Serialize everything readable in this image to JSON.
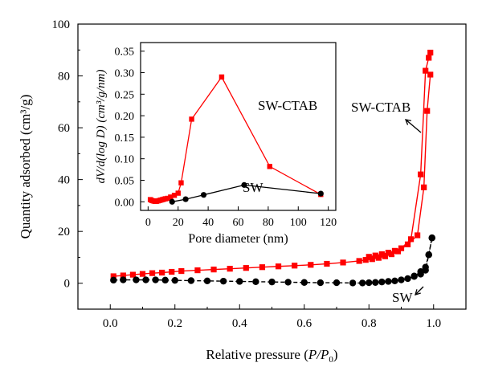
{
  "chart_data": [
    {
      "type": "scatter",
      "role": "main",
      "xlabel": "Relative pressure",
      "xlabel_math": "P/P0",
      "ylabel": "Quantity adsorbed (cm³/g)",
      "xlim": [
        -0.1,
        1.1
      ],
      "ylim": [
        -10,
        100
      ],
      "xticks": [
        "0.0",
        "0.2",
        "0.4",
        "0.6",
        "0.8",
        "1.0"
      ],
      "yticks": [
        "0",
        "20",
        "40",
        "60",
        "80",
        "100"
      ],
      "grid": false,
      "series": [
        {
          "name": "SW-CTAB",
          "color": "#ff0000",
          "marker": "square",
          "adsorption": {
            "x": [
              0.01,
              0.04,
              0.07,
              0.1,
              0.13,
              0.16,
              0.19,
              0.22,
              0.27,
              0.32,
              0.37,
              0.42,
              0.47,
              0.52,
              0.57,
              0.62,
              0.67,
              0.72,
              0.77,
              0.79,
              0.81,
              0.83,
              0.85,
              0.87,
              0.89,
              0.92,
              0.95,
              0.97,
              0.98,
              0.99
            ],
            "y": [
              2.7,
              3.0,
              3.3,
              3.6,
              3.9,
              4.1,
              4.4,
              4.7,
              5.0,
              5.3,
              5.6,
              5.9,
              6.2,
              6.5,
              6.8,
              7.1,
              7.5,
              8.0,
              8.6,
              9.0,
              9.3,
              9.8,
              10.4,
              11.2,
              12.3,
              15.0,
              18.5,
              37.0,
              66.5,
              80.5
            ]
          },
          "desorption": {
            "x": [
              0.99,
              0.985,
              0.975,
              0.96,
              0.93,
              0.9,
              0.88,
              0.86,
              0.84,
              0.82,
              0.8
            ],
            "y": [
              89.0,
              87.0,
              82.0,
              42.0,
              17.0,
              13.5,
              12.5,
              11.8,
              11.2,
              10.7,
              10.2
            ]
          }
        },
        {
          "name": "SW",
          "color": "#000000",
          "marker": "circle",
          "adsorption": {
            "x": [
              0.01,
              0.04,
              0.08,
              0.11,
              0.14,
              0.17,
              0.2,
              0.25,
              0.3,
              0.35,
              0.4,
              0.45,
              0.5,
              0.55,
              0.6,
              0.65,
              0.7,
              0.75,
              0.78,
              0.8,
              0.82,
              0.84,
              0.86,
              0.88,
              0.9,
              0.92,
              0.94,
              0.96,
              0.975,
              0.985,
              0.995
            ],
            "y": [
              1.2,
              1.3,
              1.3,
              1.3,
              1.3,
              1.2,
              1.1,
              1.0,
              0.9,
              0.8,
              0.7,
              0.6,
              0.5,
              0.4,
              0.3,
              0.2,
              0.2,
              0.1,
              0.1,
              0.2,
              0.3,
              0.5,
              0.7,
              0.9,
              1.3,
              1.8,
              2.6,
              4.5,
              6.2,
              11.0,
              17.5
            ]
          },
          "desorption": {
            "x": [
              0.995,
              0.985,
              0.975,
              0.96,
              0.94
            ],
            "y": [
              17.5,
              11.0,
              5.0,
              3.5,
              2.8
            ]
          }
        }
      ],
      "annotations": [
        {
          "text": "SW-CTAB",
          "arrow": true
        },
        {
          "text": "SW",
          "arrow": true
        }
      ]
    },
    {
      "type": "line",
      "role": "inset",
      "xlabel": "Pore diameter (nm)",
      "ylabel": "dV/d(log D) (cm³/g/nm)",
      "xlim": [
        -5,
        125
      ],
      "ylim": [
        -0.02,
        0.37
      ],
      "xticks": [
        "0",
        "20",
        "40",
        "60",
        "80",
        "100",
        "120"
      ],
      "yticks": [
        "0.00",
        "0.05",
        "0.10",
        "0.15",
        "0.20",
        "0.25",
        "0.30",
        "0.35"
      ],
      "grid": false,
      "series": [
        {
          "name": "SW-CTAB",
          "color": "#ff0000",
          "marker": "square",
          "x": [
            1.5,
            2.5,
            3.5,
            4.5,
            5.5,
            6.5,
            7.5,
            8.5,
            9.5,
            10.5,
            11.5,
            13,
            15,
            17.5,
            20,
            22,
            29,
            49,
            81,
            115
          ],
          "y": [
            0.005,
            0.003,
            0.002,
            0.001,
            0.001,
            0.002,
            0.003,
            0.004,
            0.005,
            0.006,
            0.007,
            0.008,
            0.011,
            0.015,
            0.02,
            0.044,
            0.192,
            0.29,
            0.082,
            0.017
          ]
        },
        {
          "name": "SW",
          "color": "#000000",
          "marker": "circle",
          "x": [
            16,
            25,
            37,
            64,
            115
          ],
          "y": [
            0.0,
            0.006,
            0.016,
            0.039,
            0.019
          ]
        }
      ],
      "annotations": [
        {
          "text": "SW-CTAB"
        },
        {
          "text": "SW"
        }
      ]
    }
  ]
}
